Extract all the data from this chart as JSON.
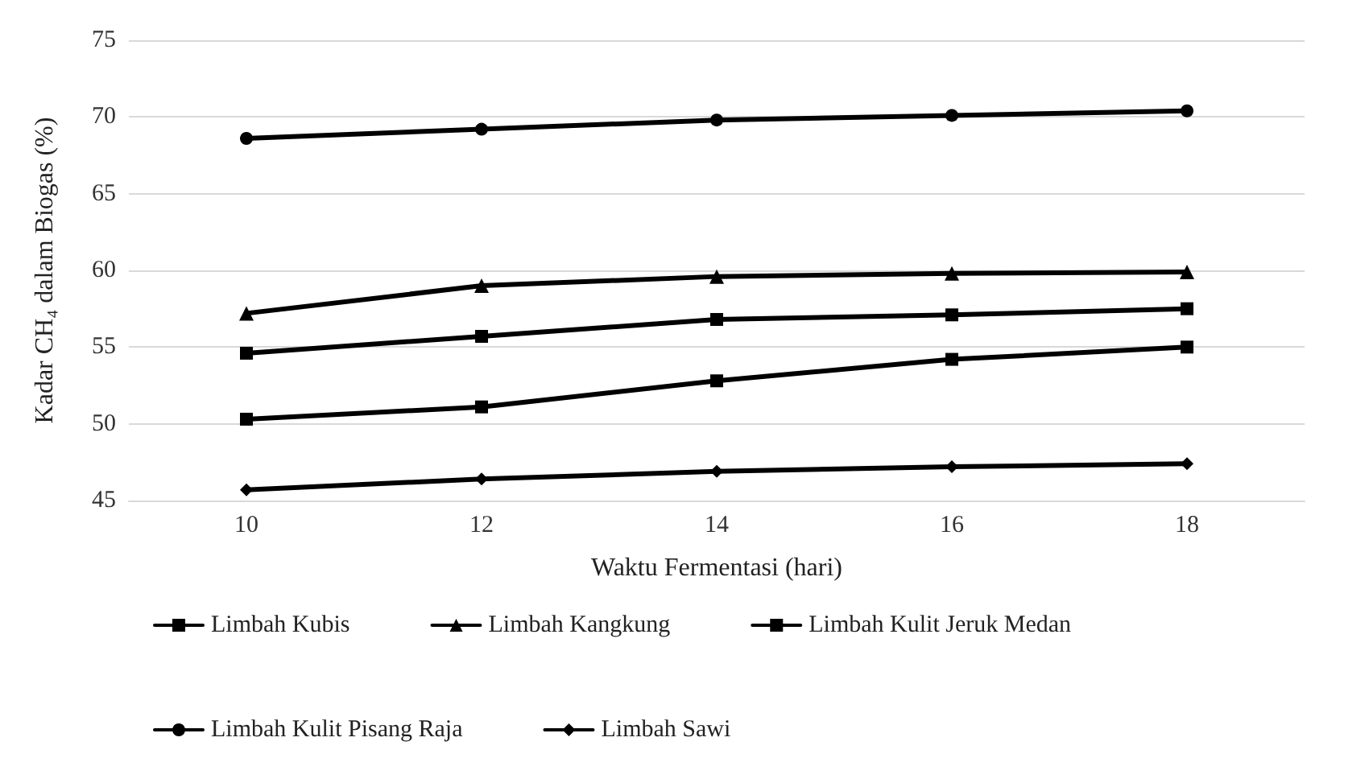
{
  "chart_data": {
    "type": "line",
    "xlabel": "Waktu Fermentasi (hari)",
    "ylabel": "Kadar CH₄ dalam Biogas (%)",
    "categories": [
      "10",
      "12",
      "14",
      "16",
      "18"
    ],
    "series": [
      {
        "name": "Limbah Kubis",
        "color": "#000000",
        "marker": "square",
        "values": [
          54.6,
          55.7,
          56.8,
          57.1,
          57.5
        ]
      },
      {
        "name": "Limbah Kangkung",
        "color": "#000000",
        "marker": "triangle",
        "values": [
          57.2,
          59.0,
          59.6,
          59.8,
          59.9
        ]
      },
      {
        "name": "Limbah Kulit Jeruk Medan",
        "color": "#000000",
        "marker": "square",
        "values": [
          50.3,
          51.1,
          52.8,
          54.2,
          55.0
        ]
      },
      {
        "name": "Limbah Kulit Pisang Raja",
        "color": "#000000",
        "marker": "circle",
        "values": [
          68.6,
          69.2,
          69.8,
          70.1,
          70.4
        ]
      },
      {
        "name": "Limbah Sawi",
        "color": "#000000",
        "marker": "diamond",
        "values": [
          45.7,
          46.4,
          46.9,
          47.2,
          47.4
        ]
      }
    ],
    "ylim": [
      45,
      75
    ],
    "yticks": [
      45,
      50,
      55,
      60,
      65,
      70,
      75
    ],
    "grid": "y",
    "legend": "bottom",
    "line_style": "solid"
  }
}
